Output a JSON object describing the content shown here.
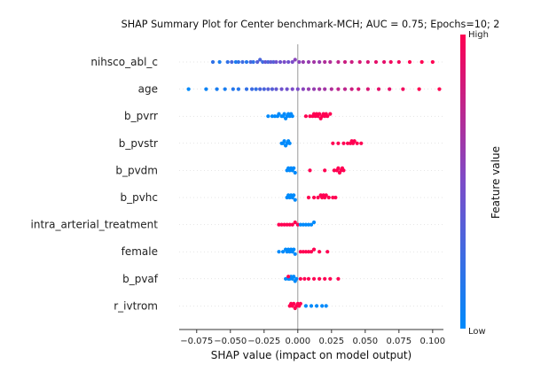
{
  "chart_data": {
    "type": "scatter",
    "subtype": "shap-beeswarm",
    "title": "SHAP Summary Plot for Center benchmark-MCH; AUC = 0.75; Epochs=10; 2",
    "xlabel": "SHAP value (impact on model output)",
    "xlim": [
      -0.088,
      0.108
    ],
    "xticks": [
      -0.075,
      -0.05,
      -0.025,
      0.0,
      0.025,
      0.05,
      0.075,
      0.1
    ],
    "xtick_labels": [
      "−0.075",
      "−0.050",
      "−0.025",
      "0.000",
      "0.025",
      "0.050",
      "0.075",
      "0.100"
    ],
    "colorbar": {
      "label": "Feature value",
      "high_label": "High",
      "low_label": "Low",
      "low_color": "#008afb",
      "mid_color": "#7c4cc8",
      "high_color": "#ff0052"
    },
    "features": [
      {
        "name": "nihsco_abl_c",
        "points": [
          [
            -0.063,
            0.2
          ],
          [
            -0.058,
            0.1
          ],
          [
            -0.052,
            0.2
          ],
          [
            -0.049,
            0.3
          ],
          [
            -0.046,
            0.1
          ],
          [
            -0.044,
            0.2
          ],
          [
            -0.041,
            0.25
          ],
          [
            -0.038,
            0.15
          ],
          [
            -0.035,
            0.3
          ],
          [
            -0.033,
            0.2
          ],
          [
            -0.03,
            0.35
          ],
          [
            -0.028,
            0.3
          ],
          [
            -0.026,
            0.25
          ],
          [
            -0.024,
            0.4
          ],
          [
            -0.022,
            0.3
          ],
          [
            -0.02,
            0.4
          ],
          [
            -0.018,
            0.35
          ],
          [
            -0.016,
            0.45
          ],
          [
            -0.013,
            0.45
          ],
          [
            -0.01,
            0.5
          ],
          [
            -0.007,
            0.45
          ],
          [
            -0.004,
            0.5
          ],
          [
            -0.002,
            0.55
          ],
          [
            0.001,
            0.55
          ],
          [
            0.004,
            0.6
          ],
          [
            0.008,
            0.6
          ],
          [
            0.012,
            0.65
          ],
          [
            0.016,
            0.6
          ],
          [
            0.02,
            0.7
          ],
          [
            0.024,
            0.7
          ],
          [
            0.03,
            0.75
          ],
          [
            0.035,
            0.8
          ],
          [
            0.04,
            0.8
          ],
          [
            0.046,
            0.85
          ],
          [
            0.052,
            0.85
          ],
          [
            0.058,
            0.9
          ],
          [
            0.064,
            0.9
          ],
          [
            0.069,
            0.95
          ],
          [
            0.075,
            0.95
          ],
          [
            0.083,
            1.0
          ],
          [
            0.092,
            1.0
          ],
          [
            0.1,
            1.0
          ]
        ]
      },
      {
        "name": "age",
        "points": [
          [
            -0.081,
            0.0
          ],
          [
            -0.068,
            0.05
          ],
          [
            -0.06,
            0.1
          ],
          [
            -0.054,
            0.1
          ],
          [
            -0.048,
            0.15
          ],
          [
            -0.044,
            0.15
          ],
          [
            -0.038,
            0.2
          ],
          [
            -0.034,
            0.25
          ],
          [
            -0.031,
            0.2
          ],
          [
            -0.028,
            0.3
          ],
          [
            -0.025,
            0.3
          ],
          [
            -0.022,
            0.35
          ],
          [
            -0.019,
            0.35
          ],
          [
            -0.016,
            0.4
          ],
          [
            -0.012,
            0.45
          ],
          [
            -0.008,
            0.45
          ],
          [
            -0.004,
            0.5
          ],
          [
            0.0,
            0.5
          ],
          [
            0.004,
            0.55
          ],
          [
            0.008,
            0.6
          ],
          [
            0.012,
            0.6
          ],
          [
            0.016,
            0.65
          ],
          [
            0.02,
            0.65
          ],
          [
            0.025,
            0.7
          ],
          [
            0.03,
            0.75
          ],
          [
            0.035,
            0.75
          ],
          [
            0.04,
            0.8
          ],
          [
            0.045,
            0.85
          ],
          [
            0.052,
            0.85
          ],
          [
            0.06,
            0.9
          ],
          [
            0.068,
            0.9
          ],
          [
            0.078,
            0.95
          ],
          [
            0.09,
            1.0
          ],
          [
            0.105,
            1.0
          ]
        ]
      },
      {
        "name": "b_pvrr",
        "points": [
          [
            -0.022,
            0.0
          ],
          [
            -0.019,
            0.0
          ],
          [
            -0.017,
            0.0
          ],
          [
            -0.015,
            0.0
          ],
          [
            -0.014,
            0.0
          ],
          [
            -0.012,
            0.0
          ],
          [
            -0.011,
            0.0
          ],
          [
            -0.01,
            0.0
          ],
          [
            -0.009,
            0.0
          ],
          [
            -0.008,
            0.0
          ],
          [
            -0.007,
            0.0
          ],
          [
            -0.006,
            0.0
          ],
          [
            -0.005,
            0.0
          ],
          [
            -0.004,
            0.0
          ],
          [
            0.006,
            1.0
          ],
          [
            0.009,
            1.0
          ],
          [
            0.011,
            1.0
          ],
          [
            0.012,
            1.0
          ],
          [
            0.013,
            1.0
          ],
          [
            0.014,
            1.0
          ],
          [
            0.015,
            1.0
          ],
          [
            0.016,
            1.0
          ],
          [
            0.017,
            1.0
          ],
          [
            0.018,
            1.0
          ],
          [
            0.019,
            1.0
          ],
          [
            0.02,
            1.0
          ],
          [
            0.021,
            1.0
          ],
          [
            0.022,
            1.0
          ],
          [
            0.024,
            1.0
          ]
        ]
      },
      {
        "name": "b_pvstr",
        "points": [
          [
            -0.012,
            0.0
          ],
          [
            -0.011,
            0.0
          ],
          [
            -0.01,
            0.0
          ],
          [
            -0.009,
            0.0
          ],
          [
            -0.008,
            0.0
          ],
          [
            -0.007,
            0.0
          ],
          [
            -0.006,
            0.0
          ],
          [
            0.026,
            1.0
          ],
          [
            0.03,
            1.0
          ],
          [
            0.034,
            1.0
          ],
          [
            0.037,
            1.0
          ],
          [
            0.039,
            1.0
          ],
          [
            0.04,
            1.0
          ],
          [
            0.041,
            1.0
          ],
          [
            0.042,
            1.0
          ],
          [
            0.044,
            1.0
          ],
          [
            0.047,
            1.0
          ]
        ]
      },
      {
        "name": "b_pvdm",
        "points": [
          [
            -0.008,
            0.0
          ],
          [
            -0.007,
            0.0
          ],
          [
            -0.006,
            0.0
          ],
          [
            -0.005,
            0.0
          ],
          [
            -0.004,
            0.0
          ],
          [
            -0.003,
            0.0
          ],
          [
            -0.002,
            0.0
          ],
          [
            0.009,
            1.0
          ],
          [
            0.02,
            1.0
          ],
          [
            0.027,
            1.0
          ],
          [
            0.029,
            1.0
          ],
          [
            0.03,
            1.0
          ],
          [
            0.031,
            1.0
          ],
          [
            0.032,
            1.0
          ],
          [
            0.033,
            1.0
          ],
          [
            0.034,
            1.0
          ]
        ]
      },
      {
        "name": "b_pvhc",
        "points": [
          [
            -0.008,
            0.0
          ],
          [
            -0.007,
            0.0
          ],
          [
            -0.006,
            0.0
          ],
          [
            -0.005,
            0.0
          ],
          [
            -0.004,
            0.0
          ],
          [
            -0.003,
            0.0
          ],
          [
            -0.002,
            0.0
          ],
          [
            0.008,
            1.0
          ],
          [
            0.012,
            1.0
          ],
          [
            0.015,
            1.0
          ],
          [
            0.017,
            1.0
          ],
          [
            0.018,
            1.0
          ],
          [
            0.019,
            1.0
          ],
          [
            0.02,
            1.0
          ],
          [
            0.021,
            1.0
          ],
          [
            0.023,
            1.0
          ],
          [
            0.026,
            1.0
          ],
          [
            0.028,
            1.0
          ]
        ]
      },
      {
        "name": "intra_arterial_treatment",
        "points": [
          [
            -0.014,
            1.0
          ],
          [
            -0.012,
            1.0
          ],
          [
            -0.01,
            1.0
          ],
          [
            -0.008,
            1.0
          ],
          [
            -0.006,
            1.0
          ],
          [
            -0.004,
            1.0
          ],
          [
            -0.002,
            1.0
          ],
          [
            0.0,
            1.0
          ],
          [
            0.002,
            0.0
          ],
          [
            0.004,
            0.0
          ],
          [
            0.006,
            0.0
          ],
          [
            0.008,
            0.0
          ],
          [
            0.01,
            0.0
          ],
          [
            0.012,
            0.0
          ]
        ]
      },
      {
        "name": "female",
        "points": [
          [
            -0.014,
            0.0
          ],
          [
            -0.011,
            0.0
          ],
          [
            -0.009,
            0.0
          ],
          [
            -0.008,
            0.0
          ],
          [
            -0.007,
            0.0
          ],
          [
            -0.006,
            0.0
          ],
          [
            -0.005,
            0.0
          ],
          [
            -0.004,
            0.0
          ],
          [
            -0.003,
            0.0
          ],
          [
            -0.002,
            0.0
          ],
          [
            0.002,
            1.0
          ],
          [
            0.004,
            1.0
          ],
          [
            0.006,
            1.0
          ],
          [
            0.008,
            1.0
          ],
          [
            0.01,
            1.0
          ],
          [
            0.012,
            1.0
          ],
          [
            0.016,
            1.0
          ],
          [
            0.022,
            1.0
          ]
        ]
      },
      {
        "name": "b_pvaf",
        "points": [
          [
            -0.009,
            0.0
          ],
          [
            -0.007,
            0.0
          ],
          [
            -0.006,
            0.0
          ],
          [
            -0.005,
            0.0
          ],
          [
            -0.004,
            0.0
          ],
          [
            -0.003,
            0.0
          ],
          [
            -0.002,
            0.0
          ],
          [
            -0.001,
            0.0
          ],
          [
            -0.007,
            1.0
          ],
          [
            0.002,
            1.0
          ],
          [
            0.005,
            1.0
          ],
          [
            0.008,
            1.0
          ],
          [
            0.012,
            1.0
          ],
          [
            0.016,
            1.0
          ],
          [
            0.02,
            1.0
          ],
          [
            0.024,
            1.0
          ],
          [
            0.03,
            1.0
          ]
        ]
      },
      {
        "name": "r_ivtrom",
        "points": [
          [
            -0.006,
            1.0
          ],
          [
            -0.005,
            1.0
          ],
          [
            -0.004,
            1.0
          ],
          [
            -0.003,
            1.0
          ],
          [
            -0.002,
            1.0
          ],
          [
            -0.001,
            1.0
          ],
          [
            0.0,
            1.0
          ],
          [
            0.001,
            1.0
          ],
          [
            0.002,
            1.0
          ],
          [
            0.006,
            0.0
          ],
          [
            0.01,
            0.0
          ],
          [
            0.014,
            0.0
          ],
          [
            0.018,
            0.0
          ],
          [
            0.021,
            0.0
          ]
        ]
      }
    ]
  }
}
